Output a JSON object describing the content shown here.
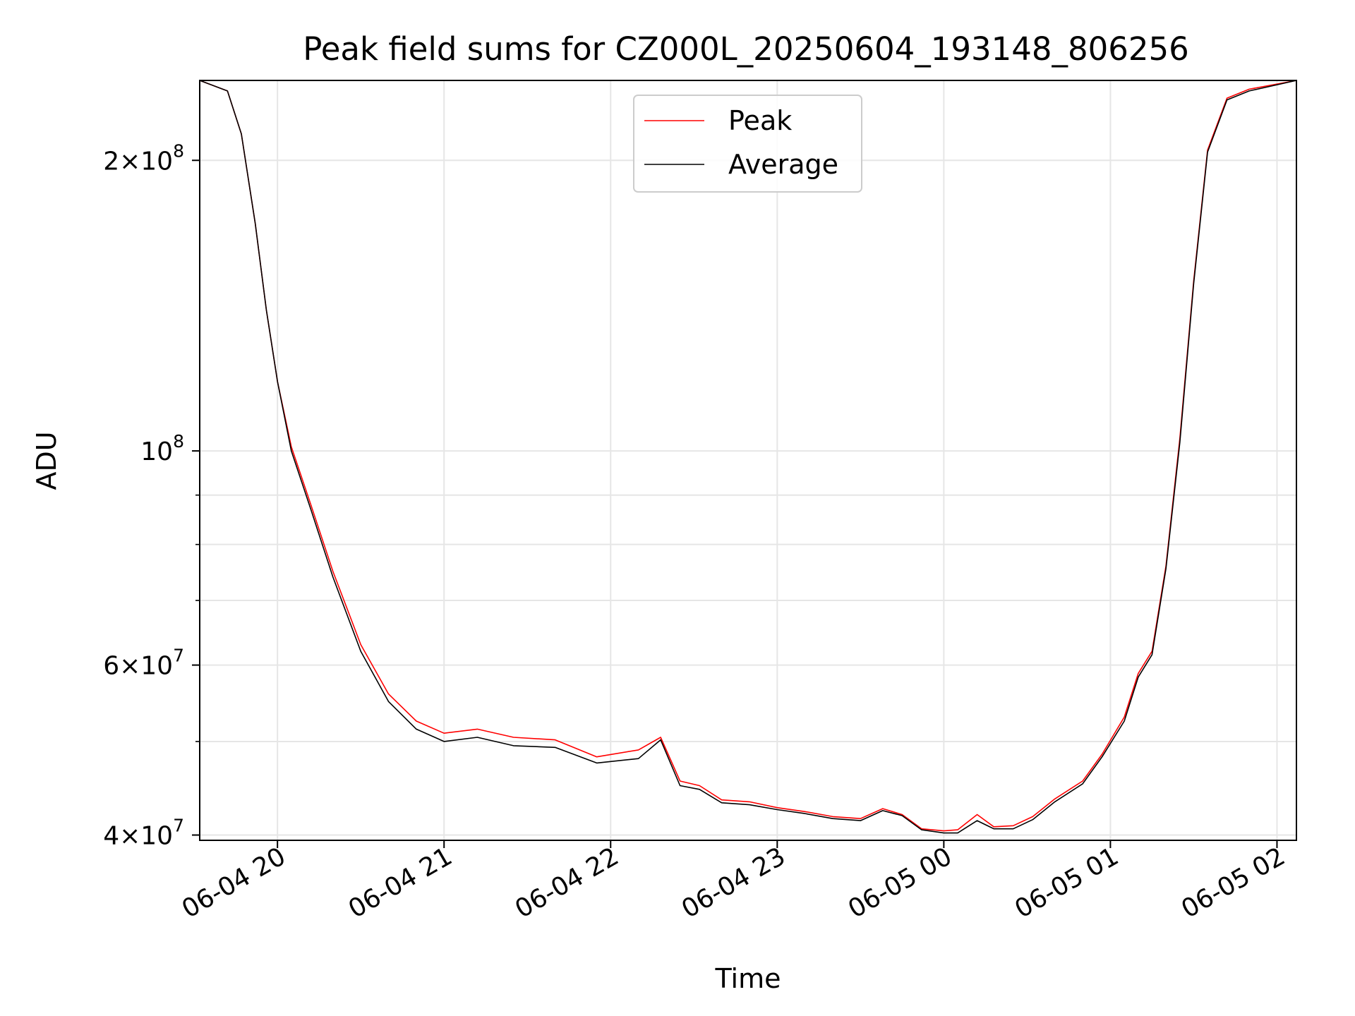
{
  "chart_data": {
    "type": "line",
    "title": "Peak field sums for CZ000L_20250604_193148_806256",
    "xlabel": "Time",
    "ylabel": "ADU",
    "y_scale": "log",
    "grid": true,
    "legend_placement": "upper center",
    "xlim": [
      "2025-06-04 19:32",
      "2025-06-05 02:07"
    ],
    "ylim": [
      39500000,
      242000000
    ],
    "x_ticks": [
      {
        "label": "06-04 20",
        "value": "2025-06-04 20:00"
      },
      {
        "label": "06-04 21",
        "value": "2025-06-04 21:00"
      },
      {
        "label": "06-04 22",
        "value": "2025-06-04 22:00"
      },
      {
        "label": "06-04 23",
        "value": "2025-06-04 23:00"
      },
      {
        "label": "06-05 00",
        "value": "2025-06-05 00:00"
      },
      {
        "label": "06-05 01",
        "value": "2025-06-05 01:00"
      },
      {
        "label": "06-05 02",
        "value": "2025-06-05 02:00"
      }
    ],
    "y_ticks": [
      {
        "mant": "4",
        "exp": "7",
        "value": 40000000
      },
      {
        "mant": "6",
        "exp": "7",
        "value": 60000000
      },
      {
        "mant": "",
        "exp": "8",
        "value": 100000000
      },
      {
        "mant": "2",
        "exp": "8",
        "value": 200000000
      }
    ],
    "y_minor_ticks": [
      50000000,
      70000000,
      80000000,
      90000000
    ],
    "x": [
      "2025-06-04 19:32",
      "2025-06-04 19:42",
      "2025-06-04 19:47",
      "2025-06-04 19:52",
      "2025-06-04 19:56",
      "2025-06-04 20:00",
      "2025-06-04 20:05",
      "2025-06-04 20:12",
      "2025-06-04 20:20",
      "2025-06-04 20:30",
      "2025-06-04 20:40",
      "2025-06-04 20:50",
      "2025-06-04 21:00",
      "2025-06-04 21:12",
      "2025-06-04 21:25",
      "2025-06-04 21:40",
      "2025-06-04 21:55",
      "2025-06-04 22:10",
      "2025-06-04 22:18",
      "2025-06-04 22:25",
      "2025-06-04 22:32",
      "2025-06-04 22:40",
      "2025-06-04 22:50",
      "2025-06-04 23:00",
      "2025-06-04 23:10",
      "2025-06-04 23:20",
      "2025-06-04 23:30",
      "2025-06-04 23:38",
      "2025-06-04 23:45",
      "2025-06-04 23:52",
      "2025-06-05 00:00",
      "2025-06-05 00:05",
      "2025-06-05 00:12",
      "2025-06-05 00:18",
      "2025-06-05 00:25",
      "2025-06-05 00:32",
      "2025-06-05 00:40",
      "2025-06-05 00:50",
      "2025-06-05 00:57",
      "2025-06-05 01:05",
      "2025-06-05 01:10",
      "2025-06-05 01:15",
      "2025-06-05 01:20",
      "2025-06-05 01:25",
      "2025-06-05 01:30",
      "2025-06-05 01:35",
      "2025-06-05 01:42",
      "2025-06-05 01:50",
      "2025-06-05 02:07"
    ],
    "series": [
      {
        "name": "Peak",
        "color": "#ff0000",
        "values": [
          242000000,
          236000000,
          213000000,
          172000000,
          140000000,
          118000000,
          101000000,
          88000000,
          75000000,
          63000000,
          56000000,
          52500000,
          51000000,
          51500000,
          50500000,
          50200000,
          48200000,
          49000000,
          50500000,
          45500000,
          45000000,
          43500000,
          43300000,
          42700000,
          42300000,
          41800000,
          41600000,
          42600000,
          42000000,
          40600000,
          40400000,
          40500000,
          42000000,
          40800000,
          40900000,
          41800000,
          43600000,
          45500000,
          48500000,
          53000000,
          58800000,
          62000000,
          76000000,
          103000000,
          150000000,
          205000000,
          232000000,
          237000000,
          242000000
        ]
      },
      {
        "name": "Average",
        "color": "#000000",
        "values": [
          242000000,
          236000000,
          213000000,
          172000000,
          140000000,
          118000000,
          100000000,
          87000000,
          74000000,
          62000000,
          55000000,
          51500000,
          50000000,
          50500000,
          49500000,
          49300000,
          47500000,
          48000000,
          50200000,
          45000000,
          44600000,
          43200000,
          43000000,
          42500000,
          42100000,
          41600000,
          41400000,
          42400000,
          41900000,
          40500000,
          40200000,
          40200000,
          41400000,
          40600000,
          40600000,
          41500000,
          43300000,
          45200000,
          48200000,
          52500000,
          58300000,
          61500000,
          75500000,
          102000000,
          149000000,
          204000000,
          231000000,
          236000000,
          242000000
        ]
      }
    ]
  }
}
